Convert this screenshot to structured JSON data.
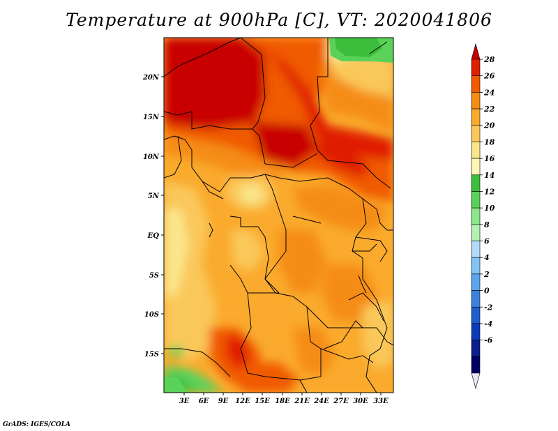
{
  "title": "Temperature at 900hPa [C], VT: 2020041806",
  "credit": "GrADS: IGES/COLA",
  "map": {
    "variable": "Temperature",
    "level": "900hPa",
    "unit": "C",
    "valid_time": "2020041806",
    "lat_ticks": [
      "20N",
      "15N",
      "10N",
      "5N",
      "EQ",
      "5S",
      "10S",
      "15S"
    ],
    "lon_ticks": [
      "3E",
      "6E",
      "9E",
      "12E",
      "15E",
      "18E",
      "21E",
      "24E",
      "27E",
      "30E",
      "33E"
    ]
  },
  "colorbar": {
    "labels": [
      "28",
      "26",
      "24",
      "22",
      "20",
      "18",
      "16",
      "14",
      "12",
      "10",
      "8",
      "6",
      "4",
      "2",
      "0",
      "-2",
      "-4",
      "-6"
    ],
    "colors": [
      "#c80000",
      "#e01e00",
      "#f05a00",
      "#f58c14",
      "#faaa2d",
      "#fac85a",
      "#fae68c",
      "#fff5b4",
      "#3cbe3c",
      "#5ad25a",
      "#8ce68c",
      "#b4f0b4",
      "#b4dcfa",
      "#82c3f5",
      "#5aa5eb",
      "#3c82dc",
      "#1e5fcd",
      "#0a3cb9",
      "#0a1e8c",
      "#000064",
      "#e6e6fa"
    ]
  }
}
